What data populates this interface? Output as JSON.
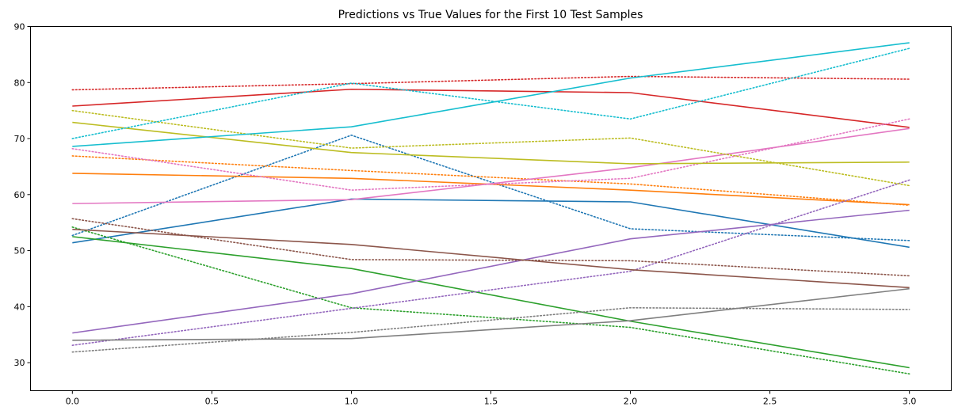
{
  "chart_data": {
    "type": "line",
    "title": "Predictions vs True Values for the First 10 Test Samples",
    "xlabel": "",
    "ylabel": "",
    "x": [
      0,
      1,
      2,
      3
    ],
    "xlim": [
      -0.15,
      3.15
    ],
    "ylim": [
      25,
      90
    ],
    "xticks": [
      0.0,
      0.5,
      1.0,
      1.5,
      2.0,
      2.5,
      3.0
    ],
    "xtick_labels": [
      "0.0",
      "0.5",
      "1.0",
      "1.5",
      "2.0",
      "2.5",
      "3.0"
    ],
    "yticks": [
      30,
      40,
      50,
      60,
      70,
      80,
      90
    ],
    "ytick_labels": [
      "30",
      "40",
      "50",
      "60",
      "70",
      "80",
      "90"
    ],
    "grid": false,
    "legend": "none",
    "series": [
      {
        "color": "#1f77b4",
        "style": "solid",
        "values": [
          51.4,
          59.2,
          58.7,
          50.6
        ]
      },
      {
        "color": "#1f77b4",
        "style": "dotted",
        "values": [
          52.7,
          70.6,
          53.9,
          51.8
        ]
      },
      {
        "color": "#ff7f0e",
        "style": "solid",
        "values": [
          63.8,
          62.9,
          60.8,
          58.2
        ]
      },
      {
        "color": "#ff7f0e",
        "style": "dotted",
        "values": [
          66.9,
          64.3,
          61.9,
          58.1
        ]
      },
      {
        "color": "#2ca02c",
        "style": "solid",
        "values": [
          52.5,
          46.8,
          37.4,
          29.1
        ]
      },
      {
        "color": "#2ca02c",
        "style": "dotted",
        "values": [
          54.2,
          39.8,
          36.3,
          28.0
        ]
      },
      {
        "color": "#d62728",
        "style": "solid",
        "values": [
          75.8,
          78.8,
          78.2,
          72.0
        ]
      },
      {
        "color": "#d62728",
        "style": "dotted",
        "values": [
          78.7,
          79.8,
          81.1,
          80.6
        ]
      },
      {
        "color": "#9467bd",
        "style": "solid",
        "values": [
          35.3,
          42.3,
          52.1,
          57.2
        ]
      },
      {
        "color": "#9467bd",
        "style": "dotted",
        "values": [
          33.1,
          39.7,
          46.3,
          62.6
        ]
      },
      {
        "color": "#8c564b",
        "style": "solid",
        "values": [
          53.8,
          51.1,
          46.6,
          43.4
        ]
      },
      {
        "color": "#8c564b",
        "style": "dotted",
        "values": [
          55.7,
          48.4,
          48.2,
          45.5
        ]
      },
      {
        "color": "#e377c2",
        "style": "solid",
        "values": [
          58.4,
          59.1,
          64.8,
          71.8
        ]
      },
      {
        "color": "#e377c2",
        "style": "dotted",
        "values": [
          68.2,
          60.8,
          62.9,
          73.5
        ]
      },
      {
        "color": "#7f7f7f",
        "style": "solid",
        "values": [
          34.0,
          34.3,
          37.5,
          43.2
        ]
      },
      {
        "color": "#7f7f7f",
        "style": "dotted",
        "values": [
          31.9,
          35.4,
          39.8,
          39.5
        ]
      },
      {
        "color": "#bcbd22",
        "style": "solid",
        "values": [
          72.9,
          67.5,
          65.5,
          65.8
        ]
      },
      {
        "color": "#bcbd22",
        "style": "dotted",
        "values": [
          75.0,
          68.3,
          70.1,
          61.6
        ]
      },
      {
        "color": "#17becf",
        "style": "solid",
        "values": [
          68.6,
          72.1,
          80.8,
          87.1
        ]
      },
      {
        "color": "#17becf",
        "style": "dotted",
        "values": [
          70.0,
          79.9,
          73.5,
          86.1
        ]
      }
    ]
  }
}
